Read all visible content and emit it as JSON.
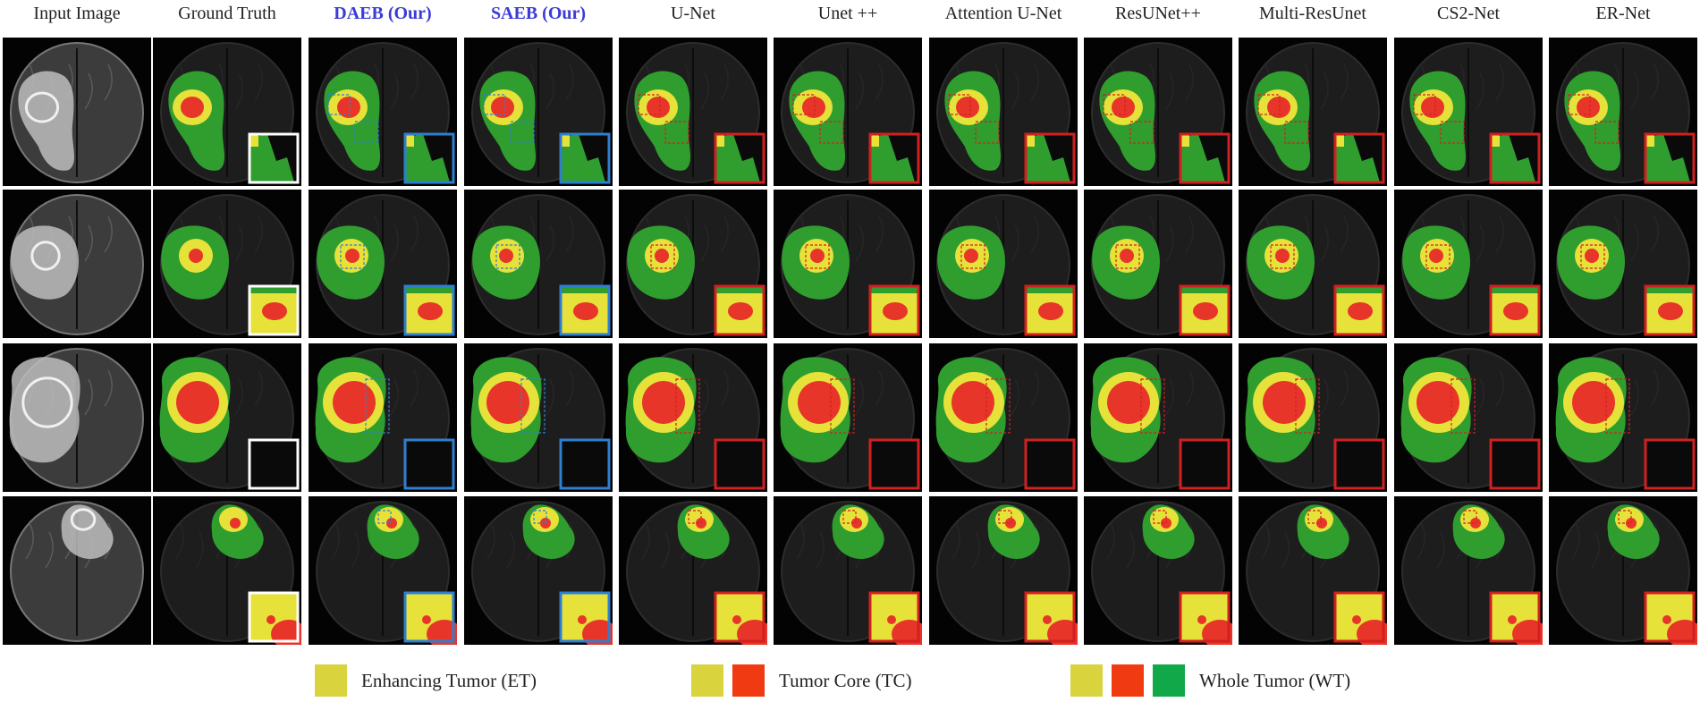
{
  "columns": [
    {
      "label": "Input Image",
      "ours": false
    },
    {
      "label": "Ground Truth",
      "ours": false
    },
    {
      "label": "DAEB (Our)",
      "ours": true
    },
    {
      "label": "SAEB (Our)",
      "ours": true
    },
    {
      "label": "U-Net",
      "ours": false
    },
    {
      "label": "Unet ++",
      "ours": false
    },
    {
      "label": "Attention U-Net",
      "ours": false
    },
    {
      "label": "ResUNet++",
      "ours": false
    },
    {
      "label": "Multi-ResUnet",
      "ours": false
    },
    {
      "label": "CS2-Net",
      "ours": false
    },
    {
      "label": "ER-Net",
      "ours": false
    }
  ],
  "row_count": 4,
  "colors": {
    "whole_tumor": "#2f9e2f",
    "enhancing_tumor": "#e6e23a",
    "tumor_core": "#e8352a",
    "gt_frame": "#ffffff",
    "ours_frame": "#2f7fd0",
    "baseline_frame": "#d22020",
    "ours_label": "#3b3bd6"
  },
  "legend": {
    "items": [
      {
        "label": "Enhancing Tumor (ET)",
        "swatches": [
          "#d9d33e"
        ]
      },
      {
        "label": "Tumor Core (TC)",
        "swatches": [
          "#d9d33e",
          "#f03a12"
        ]
      },
      {
        "label": "Whole Tumor (WT)",
        "swatches": [
          "#d9d33e",
          "#f03a12",
          "#10a848"
        ]
      }
    ]
  }
}
